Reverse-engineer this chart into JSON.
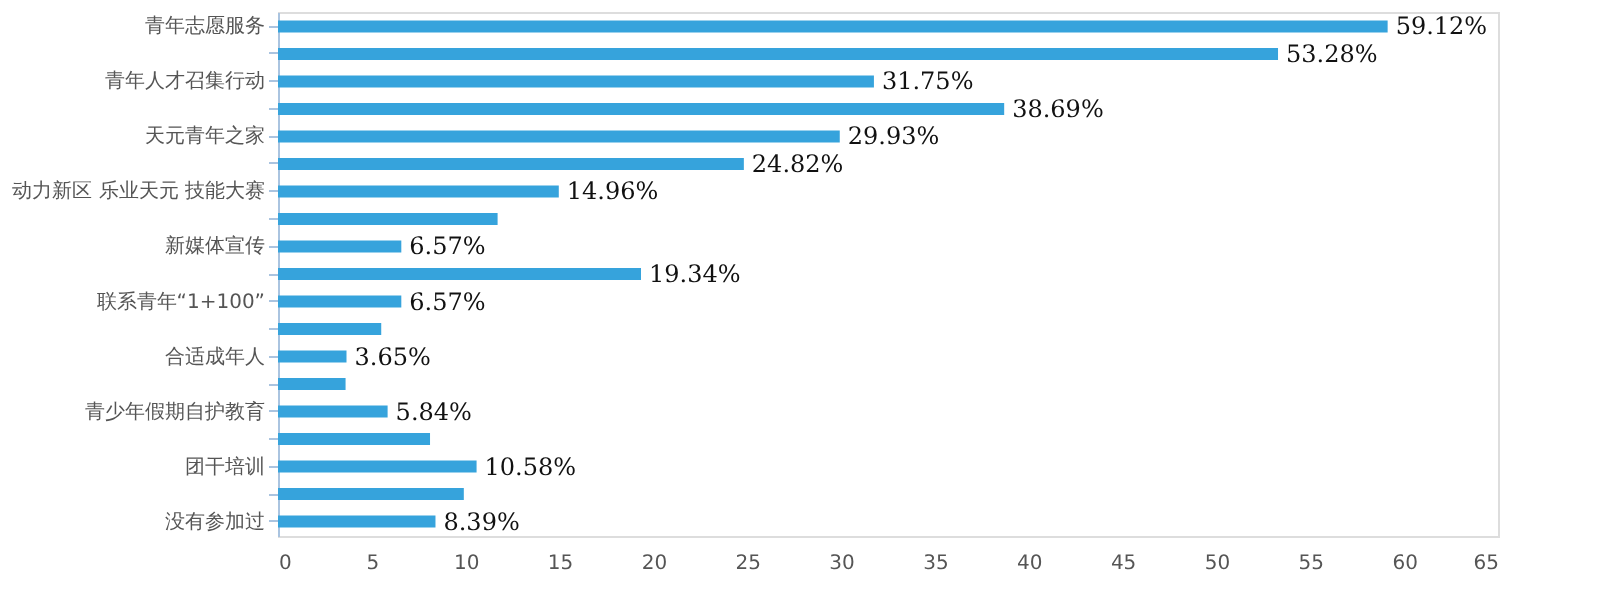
{
  "chart_data": {
    "type": "bar",
    "orientation": "horizontal",
    "color": "#36a3dc",
    "categories": [
      "青年志愿服务",
      null,
      "青年人才召集行动",
      null,
      "天元青年之家",
      null,
      "动力新区 乐业天元 技能大赛",
      null,
      "新媒体宣传",
      null,
      "联系青年“1+100”",
      null,
      "合适成年人",
      null,
      "青少年假期自护教育",
      null,
      "团干培训",
      null,
      "没有参加过"
    ],
    "values": [
      59.12,
      53.28,
      31.75,
      38.69,
      29.93,
      24.82,
      14.96,
      11.7,
      6.57,
      19.34,
      6.57,
      5.5,
      3.65,
      3.6,
      5.84,
      8.1,
      10.58,
      9.9,
      8.39
    ],
    "value_labels": [
      "59.12%",
      "53.28%",
      "31.75%",
      "38.69%",
      "29.93%",
      "24.82%",
      "14.96%",
      null,
      "6.57%",
      "19.34%",
      "6.57%",
      null,
      "3.65%",
      null,
      "5.84%",
      null,
      "10.58%",
      null,
      "8.39%"
    ],
    "xlim": [
      0,
      65
    ],
    "xticks": [
      0,
      5,
      10,
      15,
      20,
      25,
      30,
      35,
      40,
      45,
      50,
      55,
      60,
      65
    ],
    "grid": false
  }
}
